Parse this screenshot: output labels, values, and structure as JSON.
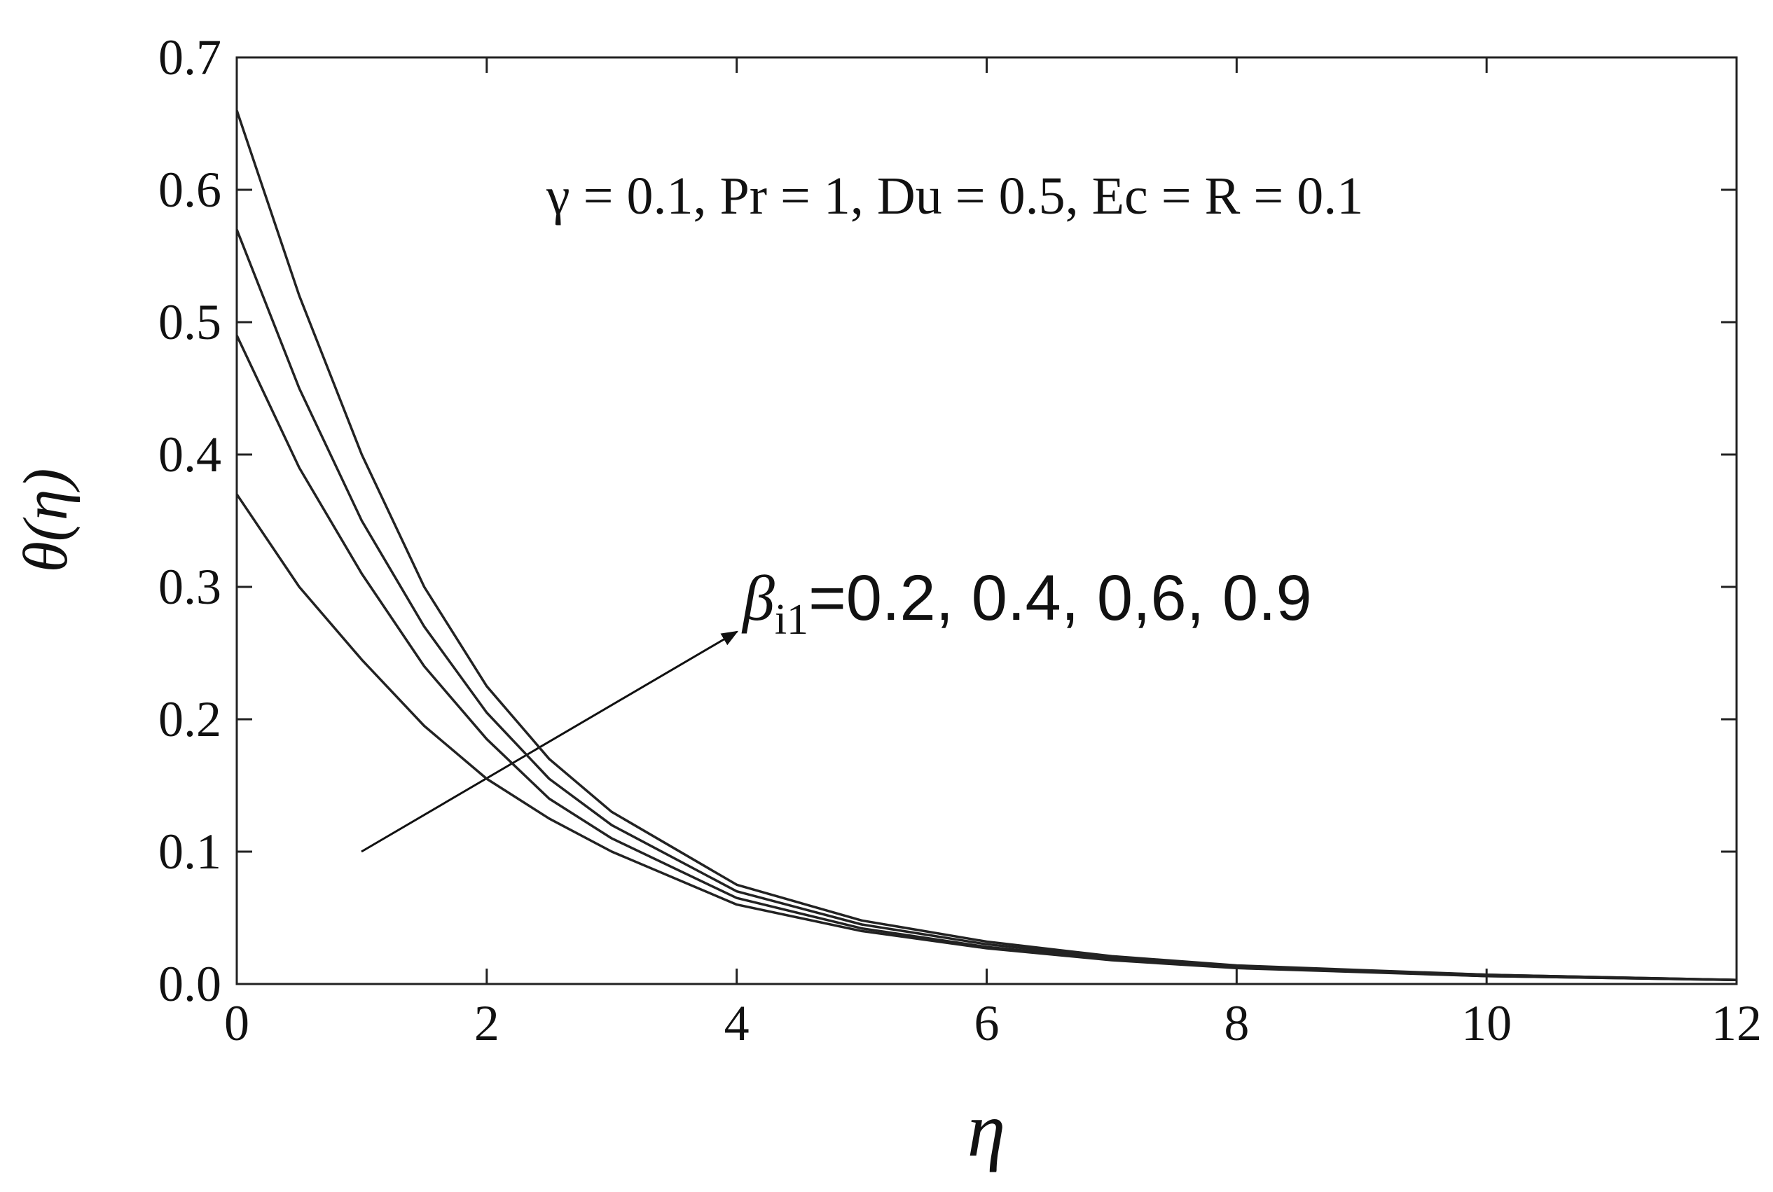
{
  "chart_data": {
    "type": "line",
    "x_label": "η",
    "y_label": "θ(η)",
    "annotations": [
      {
        "text": "γ = 0.1, Pr = 1, Du = 0.5, Ec = R = 0.1"
      },
      {
        "symbol": "β",
        "subscript": "i1",
        "text": "=0.2, 0.4, 0,6, 0.9"
      }
    ],
    "x": [
      0,
      0.5,
      1,
      1.5,
      2,
      2.5,
      3,
      4,
      5,
      6,
      7,
      8,
      10,
      12
    ],
    "series": [
      {
        "color": "#222222",
        "values": [
          0.37,
          0.3,
          0.245,
          0.195,
          0.155,
          0.125,
          0.1,
          0.06,
          0.04,
          0.027,
          0.018,
          0.012,
          0.006,
          0.003
        ]
      },
      {
        "color": "#222222",
        "values": [
          0.49,
          0.39,
          0.31,
          0.24,
          0.185,
          0.14,
          0.11,
          0.065,
          0.042,
          0.028,
          0.019,
          0.013,
          0.006,
          0.003
        ]
      },
      {
        "color": "#222222",
        "values": [
          0.57,
          0.45,
          0.35,
          0.27,
          0.205,
          0.155,
          0.12,
          0.07,
          0.045,
          0.03,
          0.02,
          0.013,
          0.007,
          0.003
        ]
      },
      {
        "color": "#222222",
        "values": [
          0.66,
          0.52,
          0.4,
          0.3,
          0.225,
          0.17,
          0.13,
          0.075,
          0.048,
          0.032,
          0.021,
          0.014,
          0.007,
          0.003
        ]
      }
    ],
    "xlim": [
      0,
      12
    ],
    "xticks": [
      0,
      2,
      4,
      6,
      8,
      10,
      12
    ],
    "ylim": [
      0,
      0.7
    ],
    "yticks": [
      {
        "value": 0,
        "label": "0.0"
      },
      0.1,
      0.2,
      0.3,
      0.4,
      0.5,
      0.6,
      0.7
    ],
    "grid": false
  }
}
